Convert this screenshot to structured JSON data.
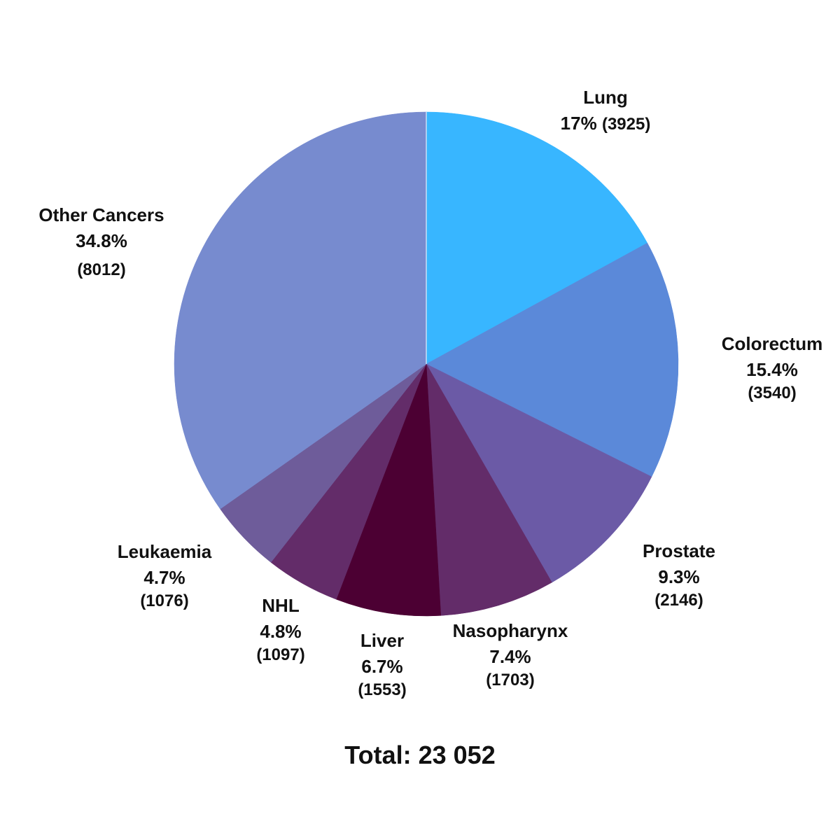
{
  "chart_data": {
    "type": "pie",
    "categories": [
      "Lung",
      "Colorectum",
      "Prostate",
      "Nasopharynx",
      "Liver",
      "NHL",
      "Leukaemia",
      "Other Cancers"
    ],
    "values": [
      3925,
      3540,
      2146,
      1703,
      1553,
      1097,
      1076,
      8012
    ],
    "percent_labels": [
      "17%",
      "15.4%",
      "9.3%",
      "7.4%",
      "6.7%",
      "4.8%",
      "4.7%",
      "34.8%"
    ],
    "count_labels": [
      "(3925)",
      "(3540)",
      "(2146)",
      "(1703)",
      "(1553)",
      "(1097)",
      "(1076)",
      "(8012)"
    ],
    "colors": [
      "#38b6ff",
      "#5b89d9",
      "#6b5aa6",
      "#632c69",
      "#4c0033",
      "#632c69",
      "#6e5c9a",
      "#778bcf"
    ],
    "start": "12 o'clock, clockwise",
    "total_label": "Total: 23 052"
  }
}
